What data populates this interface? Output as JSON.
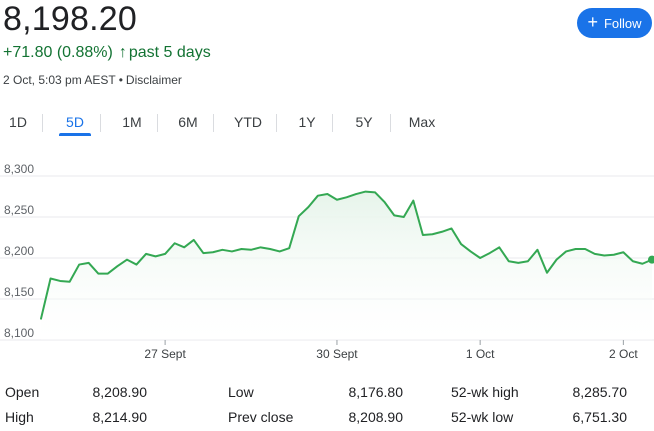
{
  "header": {
    "price": "8,198.20",
    "change": "+71.80 (0.88%)",
    "change_arrow": "↑",
    "period": "past 5 days",
    "timestamp": "2 Oct, 5:03 pm AEST",
    "separator": "•",
    "disclaimer": "Disclaimer"
  },
  "follow_button": {
    "label": "Follow",
    "icon": "plus-icon"
  },
  "tabs": [
    {
      "label": "1D",
      "active": false
    },
    {
      "label": "5D",
      "active": true
    },
    {
      "label": "1M",
      "active": false
    },
    {
      "label": "6M",
      "active": false
    },
    {
      "label": "YTD",
      "active": false
    },
    {
      "label": "1Y",
      "active": false
    },
    {
      "label": "5Y",
      "active": false
    },
    {
      "label": "Max",
      "active": false
    }
  ],
  "colors": {
    "accent": "#1a73e8",
    "positive": "#137333",
    "line": "#34a853",
    "fill": "#e6f4ea"
  },
  "chart_data": {
    "type": "area",
    "ylim": [
      8100,
      8300
    ],
    "yticks": [
      "8,300",
      "8,250",
      "8,200",
      "8,150",
      "8,100"
    ],
    "xtick_labels": [
      "27 Sept",
      "30 Sept",
      "1 Oct",
      "2 Oct"
    ],
    "xtick_index": [
      13,
      31,
      46,
      61
    ],
    "grid": true,
    "legend": "none",
    "series": [
      {
        "values": [
          8126,
          8175,
          8172,
          8171,
          8192,
          8194,
          8181,
          8181,
          8190,
          8198,
          8192,
          8205,
          8202,
          8205,
          8218,
          8213,
          8222,
          8206,
          8207,
          8210,
          8208,
          8211,
          8210,
          8213,
          8211,
          8208,
          8212,
          8251,
          8262,
          8276,
          8278,
          8271,
          8274,
          8278,
          8281,
          8280,
          8268,
          8252,
          8250,
          8270,
          8228,
          8229,
          8232,
          8236,
          8217,
          8208,
          8200,
          8206,
          8213,
          8196,
          8194,
          8196,
          8210,
          8182,
          8198,
          8208,
          8211,
          8211,
          8205,
          8203,
          8204,
          8207,
          8196,
          8193,
          8198
        ]
      }
    ]
  },
  "stats": [
    {
      "label": "Open",
      "value": "8,208.90"
    },
    {
      "label": "High",
      "value": "8,214.90"
    },
    {
      "label": "Low",
      "value": "8,176.80"
    },
    {
      "label": "Prev close",
      "value": "8,208.90"
    },
    {
      "label": "52-wk high",
      "value": "8,285.70"
    },
    {
      "label": "52-wk low",
      "value": "6,751.30"
    }
  ]
}
